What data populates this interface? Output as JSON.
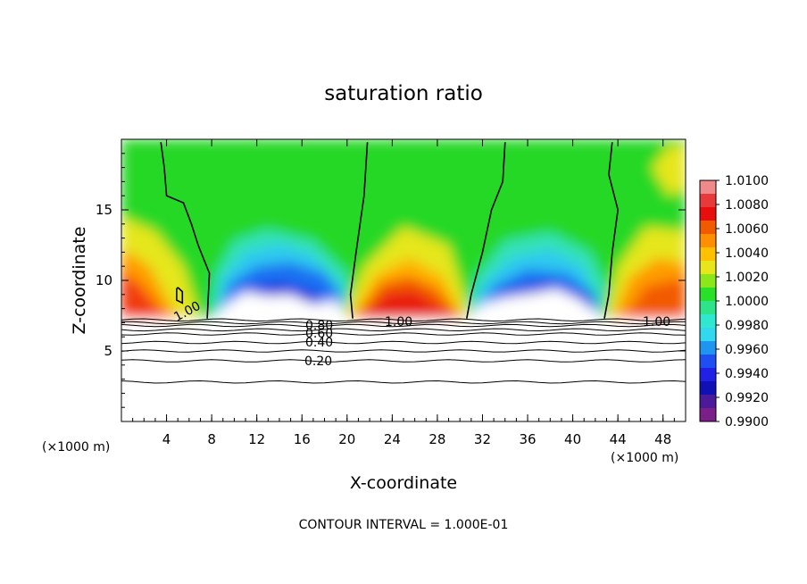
{
  "chart_data": {
    "type": "heatmap",
    "title": "saturation ratio",
    "xlabel": "X-coordinate",
    "ylabel": "Z-coordinate",
    "x_unit": "(×1000 m)",
    "z_unit": "(×1000 m)",
    "xlim": [
      0,
      50
    ],
    "ylim": [
      0,
      20
    ],
    "x_ticks": [
      "4",
      "8",
      "12",
      "16",
      "20",
      "24",
      "28",
      "32",
      "36",
      "40",
      "44",
      "48"
    ],
    "y_ticks": [
      "5",
      "10",
      "15"
    ],
    "colorbar": {
      "levels": [
        "1.0100",
        "1.0080",
        "1.0060",
        "1.0040",
        "1.0020",
        "1.0000",
        "0.9980",
        "0.9960",
        "0.9940",
        "0.9920",
        "0.9900"
      ],
      "colors": [
        "#f08a8a",
        "#e83a3a",
        "#e80e0e",
        "#f25a00",
        "#ff8f00",
        "#ffc000",
        "#e6e61a",
        "#8be61a",
        "#27e027",
        "#2de48a",
        "#2fe8cf",
        "#32d7f0",
        "#1e95f0",
        "#1f4ff2",
        "#2020e6",
        "#1010b4",
        "#4a1a9a",
        "#7a1e8a"
      ]
    },
    "contour_labels": [
      "1.00",
      "1.00",
      "1.00",
      "0.80",
      "0.60",
      "0.40",
      "0.20"
    ],
    "contour_interval_text": "CONTOUR INTERVAL = 1.000E-01",
    "features": {
      "cloud_base_z": 7.3,
      "plumes_x": [
        0,
        21,
        44
      ],
      "dry_zones_x": [
        [
          8,
          19
        ],
        [
          31,
          41
        ]
      ]
    }
  }
}
